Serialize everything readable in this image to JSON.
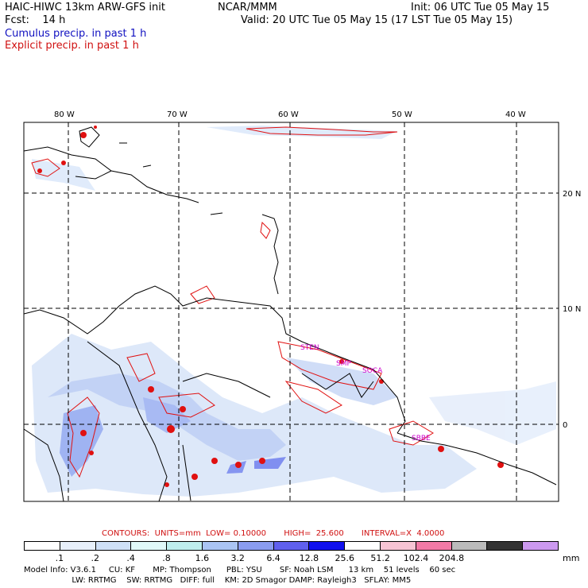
{
  "header": {
    "model_title": "HAIC-HIWC 13km ARW-GFS init",
    "org": "NCAR/MMM",
    "init": "Init: 06 UTC Tue 05 May 15",
    "fcst": "Fcst:    14 h",
    "valid": "Valid: 20 UTC Tue 05 May 15 (17 LST Tue 05 May 15)",
    "cumulus_label": "Cumulus precip. in past 1 h",
    "explicit_label": "Explicit precip. in past 1 h"
  },
  "map": {
    "lon_labels": [
      "80 W",
      "70 W",
      "60 W",
      "50 W",
      "40 W"
    ],
    "lat_labels": [
      "20 N",
      "10 N",
      "0"
    ],
    "station_labels": [
      "STEN",
      "SMP",
      "SOCA",
      "SBBE"
    ]
  },
  "legend": {
    "contours": "CONTOURS:  UNITS=mm  LOW= 0.10000       HIGH=  25.600       INTERVAL=X  4.0000",
    "colors": [
      "#ffffff",
      "#e8f0fb",
      "#cfe0f7",
      "#e0f8f8",
      "#bfeeee",
      "#aac4f4",
      "#8a9cf0",
      "#6060ee",
      "#1010ee",
      "#ffffff",
      "#f7c4d4",
      "#f27aa6",
      "#bbbbbb",
      "#333333",
      "#cc99f0"
    ],
    "labels": [
      ".1",
      ".2",
      ".4",
      ".8",
      "1.6",
      "3.2",
      "6.4",
      "12.8",
      "25.6",
      "51.2",
      "102.4",
      "204.8"
    ],
    "units": "mm"
  },
  "footer": {
    "line1": "Model Info: V3.6.1     CU: KF       MP: Thompson      PBL: YSU       SF: Noah LSM      13 km    51 levels    60 sec",
    "line2": "                   LW: RRTMG    SW: RRTMG   DIFF: full    KM: 2D Smagor DAMP: Rayleigh3   SFLAY: MM5"
  }
}
